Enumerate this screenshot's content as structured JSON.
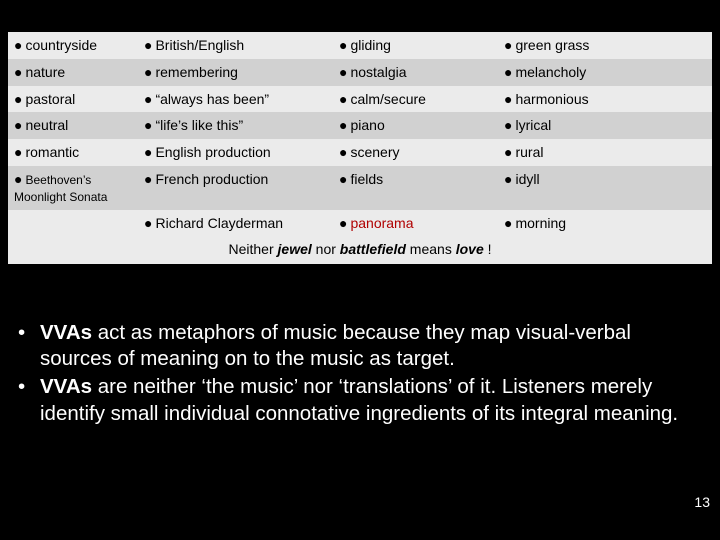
{
  "table": {
    "rows": [
      {
        "bg": "light",
        "c1": "countryside",
        "c2": "British/English",
        "c3": "gliding",
        "c4": "green grass",
        "c1small": false
      },
      {
        "bg": "dark",
        "c1": "nature",
        "c2": "remembering",
        "c3": "nostalgia",
        "c4": "melancholy",
        "c1small": false
      },
      {
        "bg": "light",
        "c1": "pastoral",
        "c2": "“always has been”",
        "c3": "calm/secure",
        "c4": "harmonious",
        "c1small": false
      },
      {
        "bg": "dark",
        "c1": "neutral",
        "c2": "“life’s like this”",
        "c3": "piano",
        "c4": "lyrical",
        "c1small": false
      },
      {
        "bg": "light",
        "c1": "romantic",
        "c2": "English production",
        "c3": "scenery",
        "c4": "rural",
        "c1small": false
      },
      {
        "bg": "dark",
        "c1": "Beethoven’s Moonlight  Sonata",
        "c2": "French production",
        "c3": "fields",
        "c4": "idyll",
        "c1small": true
      },
      {
        "bg": "light",
        "c1": "",
        "c2": "Richard Clayderman",
        "c3": "panorama",
        "c4": "morning",
        "c1small": false,
        "c3red": true
      }
    ],
    "footer_html": "Neither <b><i>jewel</i></b> nor <b><i>battlefield</i></b> means <b><i>love</i></b> !"
  },
  "bullets": [
    "<b>VVAs</b> act as metaphors of music because they map visual-verbal sources of meaning on to the music as target.",
    "<b>VVAs</b> are neither ‘the music’ nor ‘translations’ of it. Listeners merely identify small individual connotative ingredients of its integral meaning."
  ],
  "page_number": "13",
  "colors": {
    "background": "#000000",
    "row_light": "#ebebeb",
    "row_dark": "#d1d1d1",
    "red": "#b00000",
    "text_light": "#ffffff",
    "text_dark": "#000000"
  },
  "typography": {
    "table_fontsize": 14,
    "table_small_fontsize": 12,
    "bullets_fontsize": 20.5,
    "pagenum_fontsize": 14,
    "font_family": "Arial"
  }
}
